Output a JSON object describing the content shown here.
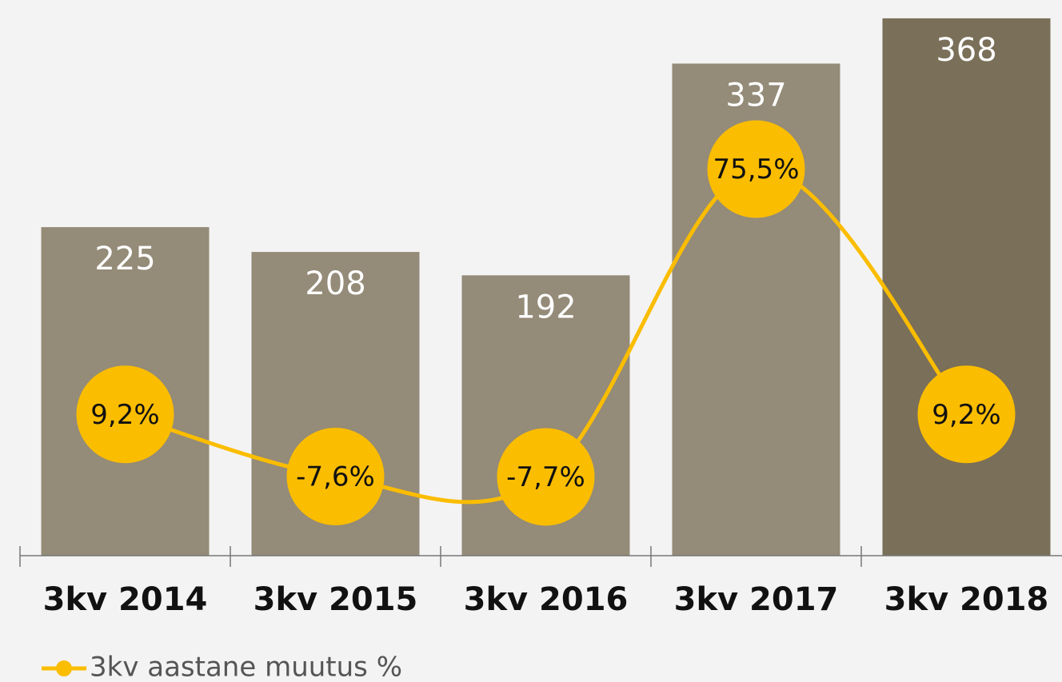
{
  "chart_data": {
    "type": "bar",
    "categories": [
      "3kv 2014",
      "3kv 2015",
      "3kv 2016",
      "3kv 2017",
      "3kv 2018"
    ],
    "series": [
      {
        "type": "bar",
        "colors": [
          "#948b78",
          "#948b78",
          "#948b78",
          "#948b78",
          "#7a6f58"
        ],
        "values": [
          225,
          208,
          192,
          337,
          368
        ]
      },
      {
        "type": "line",
        "name": "3kv aastane muutus %",
        "color": "#fbbd00",
        "axis": "y2",
        "values": [
          9.2,
          -7.6,
          -7.7,
          75.5,
          9.2
        ],
        "value_labels": [
          "9,2%",
          "-7,6%",
          "-7,7%",
          "75,5%",
          "9,2%"
        ]
      }
    ],
    "ylim": [
      0,
      380
    ],
    "y2lim": [
      -29,
      121
    ],
    "grid": false,
    "legend": "bottom-left"
  }
}
